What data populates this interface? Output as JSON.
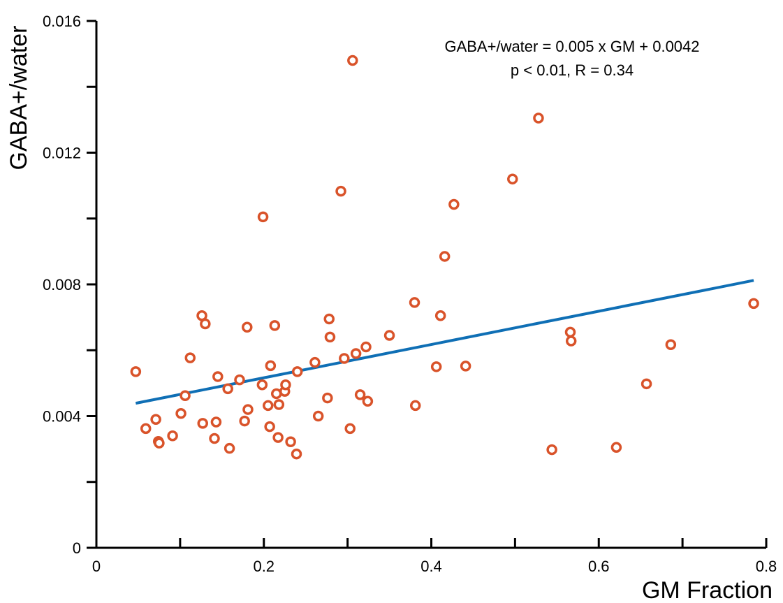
{
  "chart_data": {
    "type": "scatter",
    "title": "",
    "xlabel": "GM Fraction",
    "ylabel": "GABA+/water",
    "xlim": [
      0,
      0.8
    ],
    "ylim": [
      0,
      0.016
    ],
    "x_ticks": [
      0,
      0.2,
      0.4,
      0.6,
      0.8
    ],
    "x_tick_labels": [
      "0",
      "0.2",
      "0.4",
      "0.6",
      "0.8"
    ],
    "y_ticks": [
      0,
      0.004,
      0.008,
      0.012,
      0.016
    ],
    "y_tick_labels": [
      "0",
      "0.004",
      "0.008",
      "0.012",
      "0.016"
    ],
    "grid": false,
    "annotation_lines": [
      "GABA+/water = 0.005 x GM + 0.0042",
      "p < 0.01, R = 0.34"
    ],
    "colors": {
      "points": "#d9532a",
      "fit": "#0f6fb5",
      "axis": "#000000"
    },
    "fit_line": {
      "x": [
        0.047,
        0.785
      ],
      "y": [
        0.00439,
        0.00812
      ]
    },
    "points": [
      [
        0.047,
        0.00535
      ],
      [
        0.059,
        0.00362
      ],
      [
        0.071,
        0.0039
      ],
      [
        0.074,
        0.00323
      ],
      [
        0.075,
        0.00318
      ],
      [
        0.091,
        0.0034
      ],
      [
        0.101,
        0.00408
      ],
      [
        0.106,
        0.00462
      ],
      [
        0.112,
        0.00577
      ],
      [
        0.126,
        0.00705
      ],
      [
        0.127,
        0.00378
      ],
      [
        0.13,
        0.0068
      ],
      [
        0.141,
        0.00332
      ],
      [
        0.143,
        0.00382
      ],
      [
        0.145,
        0.0052
      ],
      [
        0.157,
        0.00483
      ],
      [
        0.159,
        0.00302
      ],
      [
        0.171,
        0.0051
      ],
      [
        0.177,
        0.00385
      ],
      [
        0.18,
        0.0067
      ],
      [
        0.181,
        0.0042
      ],
      [
        0.198,
        0.00495
      ],
      [
        0.199,
        0.01005
      ],
      [
        0.205,
        0.00432
      ],
      [
        0.207,
        0.00368
      ],
      [
        0.208,
        0.00553
      ],
      [
        0.213,
        0.00675
      ],
      [
        0.215,
        0.00468
      ],
      [
        0.217,
        0.00335
      ],
      [
        0.218,
        0.00435
      ],
      [
        0.225,
        0.00475
      ],
      [
        0.226,
        0.00495
      ],
      [
        0.232,
        0.00322
      ],
      [
        0.239,
        0.00285
      ],
      [
        0.24,
        0.00535
      ],
      [
        0.261,
        0.00563
      ],
      [
        0.265,
        0.004
      ],
      [
        0.276,
        0.00455
      ],
      [
        0.278,
        0.00695
      ],
      [
        0.279,
        0.0064
      ],
      [
        0.292,
        0.01083
      ],
      [
        0.296,
        0.00575
      ],
      [
        0.303,
        0.00362
      ],
      [
        0.306,
        0.0148
      ],
      [
        0.31,
        0.0059
      ],
      [
        0.315,
        0.00465
      ],
      [
        0.322,
        0.0061
      ],
      [
        0.324,
        0.00445
      ],
      [
        0.35,
        0.00645
      ],
      [
        0.38,
        0.00745
      ],
      [
        0.381,
        0.00432
      ],
      [
        0.406,
        0.0055
      ],
      [
        0.411,
        0.00705
      ],
      [
        0.416,
        0.00885
      ],
      [
        0.427,
        0.01043
      ],
      [
        0.441,
        0.00552
      ],
      [
        0.497,
        0.0112
      ],
      [
        0.528,
        0.01305
      ],
      [
        0.544,
        0.00298
      ],
      [
        0.566,
        0.00655
      ],
      [
        0.567,
        0.00628
      ],
      [
        0.621,
        0.00305
      ],
      [
        0.657,
        0.00498
      ],
      [
        0.686,
        0.00617
      ],
      [
        0.785,
        0.00742
      ]
    ]
  }
}
